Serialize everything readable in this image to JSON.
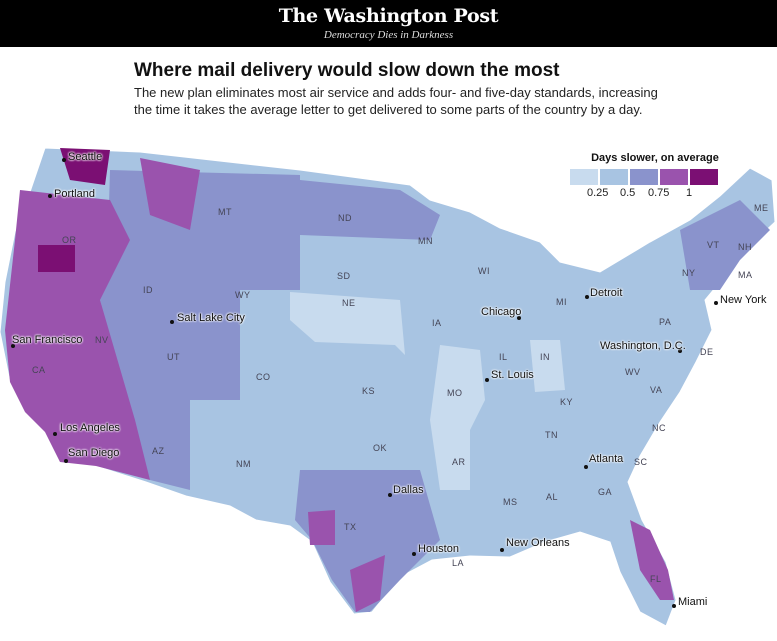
{
  "header": {
    "logo": "The Washington Post",
    "tagline": "Democracy Dies in Darkness"
  },
  "title": "Where mail delivery would slow down the most",
  "dek": "The new plan eliminates most air service and adds four- and five-day standards, increasing the time it takes the average letter to get delivered to some parts of the country by a day.",
  "legend": {
    "title": "Days slower, on average",
    "colors": [
      "#c8dbee",
      "#a8c4e2",
      "#8a93cc",
      "#9a53ad",
      "#7b0f73"
    ],
    "ticks": [
      "0.25",
      "0.5",
      "0.75",
      "1"
    ]
  },
  "cities": [
    "Seattle",
    "Portland",
    "San Francisco",
    "Salt Lake City",
    "Los Angeles",
    "San Diego",
    "Dallas",
    "Houston",
    "New Orleans",
    "St. Louis",
    "Chicago",
    "Detroit",
    "Washington, D.C.",
    "New York",
    "Atlanta",
    "Miami"
  ],
  "states": [
    "OR",
    "ID",
    "MT",
    "WY",
    "NV",
    "UT",
    "CO",
    "AZ",
    "NM",
    "ND",
    "SD",
    "NE",
    "KS",
    "OK",
    "TX",
    "MN",
    "IA",
    "MO",
    "AR",
    "LA",
    "WI",
    "IL",
    "IN",
    "MI",
    "KY",
    "TN",
    "MS",
    "AL",
    "GA",
    "FL",
    "SC",
    "NC",
    "VA",
    "WV",
    "PA",
    "NY",
    "VT",
    "NH",
    "ME",
    "MA",
    "DE",
    "CA"
  ]
}
